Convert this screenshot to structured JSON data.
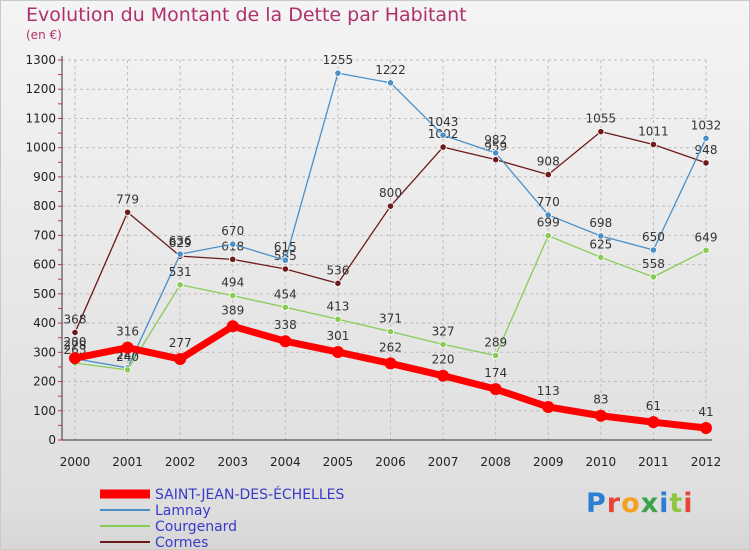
{
  "title": "Evolution du Montant de la Dette par Habitant",
  "unit": "(en €)",
  "logo": {
    "text": "Proxiti",
    "colors": [
      "#2a7fd4",
      "#e8443a",
      "#f4a020",
      "#3aa34b",
      "#2a7fd4",
      "#8ec63f",
      "#e8443a"
    ]
  },
  "chart_data": {
    "type": "line",
    "x": [
      "2000",
      "2001",
      "2002",
      "2003",
      "2004",
      "2005",
      "2006",
      "2007",
      "2008",
      "2009",
      "2010",
      "2011",
      "2012"
    ],
    "ylim": [
      0,
      1300
    ],
    "yticks": [
      "0",
      "100",
      "200",
      "300",
      "400",
      "500",
      "600",
      "700",
      "800",
      "900",
      "1000",
      "1100",
      "1200",
      "1300"
    ],
    "grid": true,
    "legend_position": "bottom-left",
    "series": [
      {
        "name": "Cormes",
        "color": "#6e1a1a",
        "values": [
          368,
          779,
          629,
          618,
          585,
          536,
          800,
          1002,
          959,
          908,
          1055,
          1011,
          948
        ]
      },
      {
        "name": "Lamnay",
        "color": "#4a90c8",
        "values": [
          278,
          247,
          636,
          670,
          615,
          1255,
          1222,
          1043,
          982,
          770,
          698,
          650,
          1032
        ]
      },
      {
        "name": "Courgenard",
        "color": "#88cc55",
        "values": [
          263,
          240,
          531,
          494,
          454,
          413,
          371,
          327,
          289,
          699,
          625,
          558,
          649
        ]
      },
      {
        "name": "SAINT-JEAN-DES-ÉCHELLES",
        "color": "#ff0000",
        "values": [
          280,
          316,
          277,
          389,
          338,
          301,
          262,
          220,
          174,
          113,
          83,
          61,
          41
        ]
      }
    ],
    "legend_order": [
      "SAINT-JEAN-DES-ÉCHELLES",
      "Lamnay",
      "Courgenard",
      "Cormes"
    ]
  }
}
